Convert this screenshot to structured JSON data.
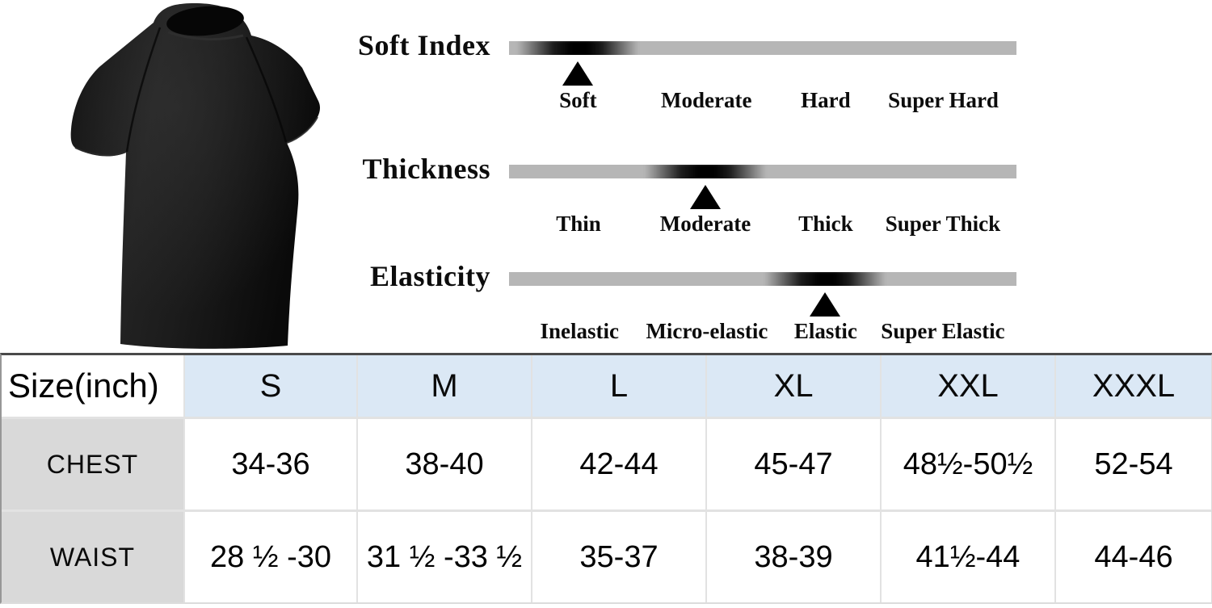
{
  "scales": [
    {
      "title": "Soft Index",
      "labels": [
        "Soft",
        "Moderate",
        "Hard",
        "Super Hard"
      ],
      "label_positions_pct": [
        13.6,
        38.9,
        62.4,
        85.6
      ],
      "marker_position_pct": 13.5,
      "selected_label": "Soft"
    },
    {
      "title": "Thickness",
      "labels": [
        "Thin",
        "Moderate",
        "Thick",
        "Super Thick"
      ],
      "label_positions_pct": [
        13.7,
        38.7,
        62.4,
        85.5
      ],
      "marker_position_pct": 38.7,
      "selected_label": "Moderate"
    },
    {
      "title": "Elasticity",
      "labels": [
        "Inelastic",
        "Micro-elastic",
        "Elastic",
        "Super Elastic"
      ],
      "label_positions_pct": [
        13.9,
        39.0,
        62.4,
        85.5
      ],
      "marker_position_pct": 62.3,
      "selected_label": "Elastic"
    }
  ],
  "size_table": {
    "corner_header": "Size(inch)",
    "size_columns": [
      "S",
      "M",
      "L",
      "XL",
      "XXL",
      "XXXL"
    ],
    "rows": [
      {
        "label": "CHEST",
        "values": [
          "34-36",
          "38-40",
          "42-44",
          "45-47",
          "48½-50½",
          "52-54"
        ]
      },
      {
        "label": "WAIST",
        "values": [
          "28 ½ -30",
          "31 ½ -33 ½",
          "35-37",
          "38-39",
          "41½-44",
          "44-46"
        ]
      }
    ]
  },
  "colors": {
    "track_gray": "#b6b6b6",
    "marker_black": "#000000",
    "header_blue": "#dbe8f5",
    "row_label_gray": "#d9d9d9",
    "shirt_black": "#141414"
  }
}
